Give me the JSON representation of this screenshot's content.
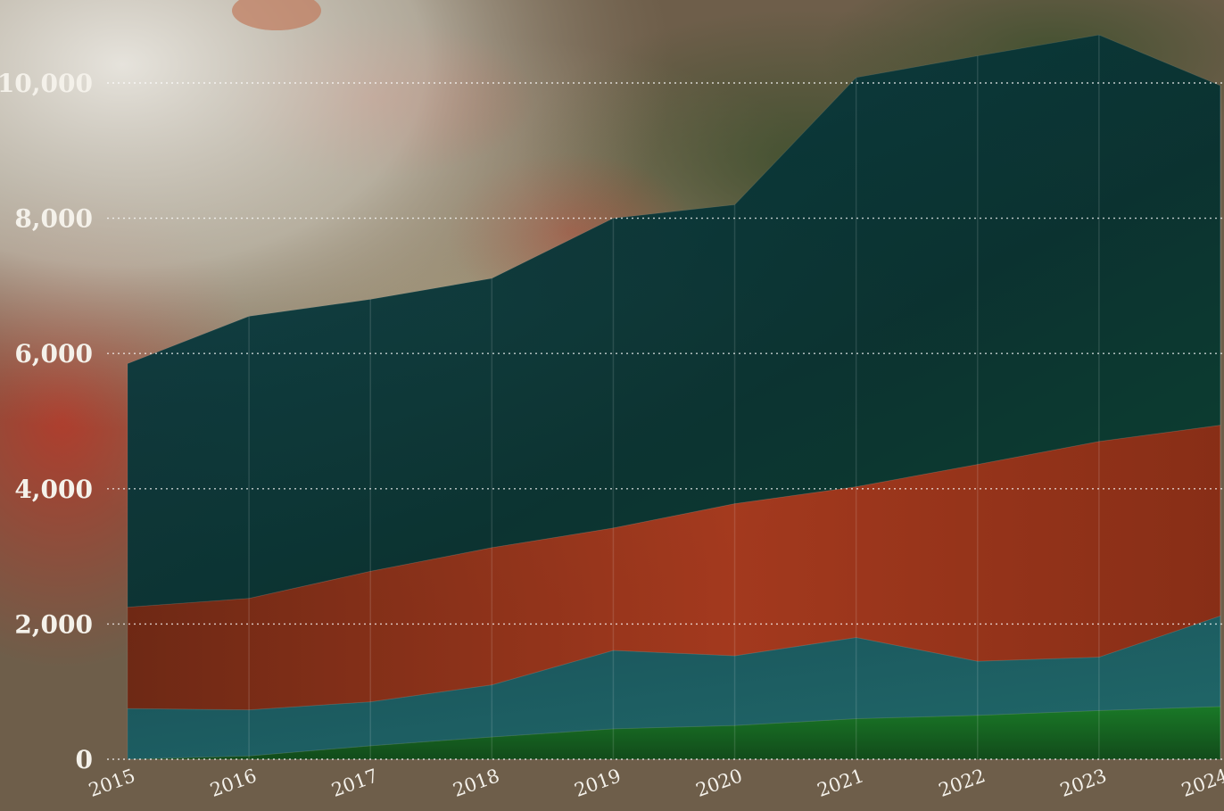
{
  "chart_data": {
    "type": "area",
    "stacked": true,
    "title": "",
    "xlabel": "",
    "ylabel": "",
    "x": [
      "2015",
      "2016",
      "2017",
      "2018",
      "2019",
      "2020",
      "2021",
      "2022",
      "2023",
      "2024"
    ],
    "ylim": [
      0,
      11000
    ],
    "yticks": [
      0,
      2000,
      4000,
      6000,
      8000,
      10000
    ],
    "ytick_labels": [
      "0",
      "2,000",
      "4,000",
      "6,000",
      "8,000",
      "10,000"
    ],
    "grid": "horizontal dotted",
    "legend": "none",
    "series": [
      {
        "color": "#1f8a2e",
        "values": [
          0,
          50,
          200,
          330,
          450,
          500,
          600,
          650,
          720,
          780
        ]
      },
      {
        "color": "#1f6a70",
        "values": [
          750,
          680,
          650,
          770,
          1160,
          1030,
          1200,
          800,
          790,
          1340
        ]
      },
      {
        "color": "#b8391a",
        "values": [
          1500,
          1650,
          1930,
          2030,
          1810,
          2250,
          2230,
          2910,
          3190,
          2820
        ]
      },
      {
        "color": "#0f4d52",
        "values": [
          3600,
          4170,
          4020,
          3980,
          4580,
          4420,
          6050,
          6040,
          6010,
          5020
        ]
      }
    ]
  },
  "background": {
    "photo_colors": [
      "#c9c4b8",
      "#9c7866",
      "#b5392a",
      "#7a6a4c",
      "#2c3e2a"
    ]
  }
}
